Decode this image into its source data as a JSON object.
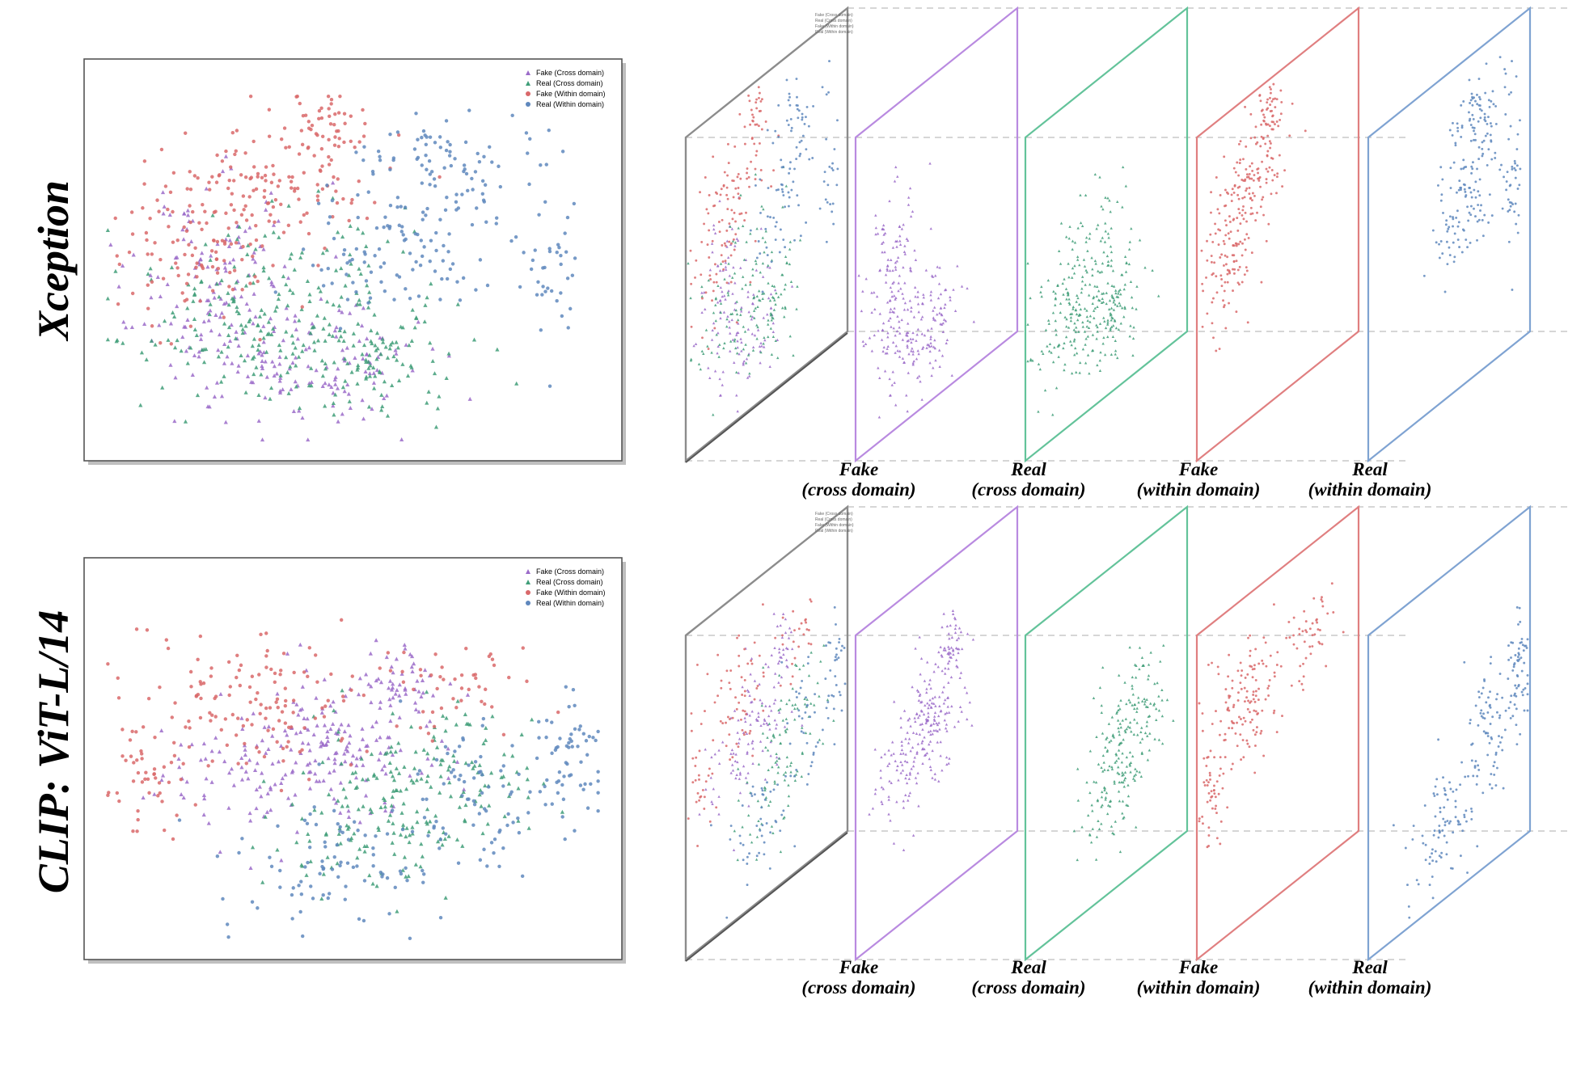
{
  "colors": {
    "fake_cross": "#9b6bc9",
    "real_cross": "#3f9e78",
    "fake_within": "#d9686a",
    "real_within": "#5f88bd",
    "frame_gray": "#8c8c8c",
    "frame_purple": "#b98ae0",
    "frame_green": "#63c39a",
    "frame_red": "#e07f80",
    "frame_blue": "#7fa3d2",
    "dashed": "#c8c8c8"
  },
  "figure": {
    "panels": [
      {
        "row_label": "Xception"
      },
      {
        "row_label": "CLIP: ViT-L/14"
      }
    ],
    "captions": [
      {
        "line1": "Fake",
        "line2": "(cross domain)"
      },
      {
        "line1": "Real",
        "line2": "(cross domain)"
      },
      {
        "line1": "Fake",
        "line2": "(within domain)"
      },
      {
        "line1": "Real",
        "line2": "(within domain)"
      }
    ]
  },
  "chart_data": [
    {
      "type": "scatter",
      "title": "",
      "row_label": "Xception",
      "xlabel": "",
      "ylabel": "",
      "legend_position": "top-right",
      "legend": [
        "Fake (Cross domain)",
        "Real (Cross domain)",
        "Fake (Within domain)",
        "Real (Within domain)"
      ],
      "grid": false,
      "series": [
        {
          "name": "Fake (Cross domain)",
          "marker": "triangle",
          "color": "#9b6bc9",
          "clusters": [
            [
              -0.55,
              -0.1,
              0.3,
              0.45,
              3
            ],
            [
              -0.3,
              -0.55,
              0.3,
              0.3,
              2
            ],
            [
              0.05,
              -0.5,
              0.25,
              0.25,
              1
            ]
          ]
        },
        {
          "name": "Real (Cross domain)",
          "marker": "triangle",
          "color": "#3f9e78",
          "clusters": [
            [
              -0.45,
              -0.3,
              0.35,
              0.4,
              3
            ],
            [
              0.05,
              -0.45,
              0.35,
              0.3,
              3
            ],
            [
              -0.1,
              0.05,
              0.25,
              0.3,
              1
            ]
          ]
        },
        {
          "name": "Fake (Within domain)",
          "marker": "circle",
          "color": "#d9686a",
          "clusters": [
            [
              -0.35,
              0.45,
              0.35,
              0.3,
              3
            ],
            [
              -0.1,
              0.8,
              0.15,
              0.15,
              1
            ],
            [
              -0.65,
              0.1,
              0.25,
              0.35,
              2
            ]
          ]
        },
        {
          "name": "Real (Within domain)",
          "marker": "circle",
          "color": "#5f88bd",
          "clusters": [
            [
              0.35,
              0.55,
              0.3,
              0.25,
              2
            ],
            [
              0.75,
              0.1,
              0.15,
              0.4,
              1
            ],
            [
              0.15,
              0.05,
              0.3,
              0.25,
              2
            ]
          ]
        }
      ]
    },
    {
      "type": "scatter",
      "title": "",
      "row_label": "CLIP: ViT-L/14",
      "xlabel": "",
      "ylabel": "",
      "legend_position": "top-right",
      "legend": [
        "Fake (Cross domain)",
        "Real (Cross domain)",
        "Fake (Within domain)",
        "Real (Within domain)"
      ],
      "grid": false,
      "series": [
        {
          "name": "Fake (Cross domain)",
          "marker": "triangle",
          "color": "#9b6bc9",
          "clusters": [
            [
              -0.1,
              0.1,
              0.3,
              0.3,
              4
            ],
            [
              -0.55,
              -0.05,
              0.25,
              0.25,
              1
            ],
            [
              0.2,
              0.45,
              0.15,
              0.15,
              1
            ]
          ]
        },
        {
          "name": "Real (Cross domain)",
          "marker": "triangle",
          "color": "#3f9e78",
          "clusters": [
            [
              0.35,
              -0.05,
              0.35,
              0.35,
              3
            ],
            [
              0.1,
              -0.35,
              0.35,
              0.3,
              2
            ]
          ]
        },
        {
          "name": "Fake (Within domain)",
          "marker": "circle",
          "color": "#d9686a",
          "clusters": [
            [
              -0.35,
              0.35,
              0.4,
              0.3,
              3
            ],
            [
              0.4,
              0.45,
              0.3,
              0.2,
              1
            ],
            [
              -0.8,
              -0.05,
              0.15,
              0.25,
              1
            ]
          ]
        },
        {
          "name": "Real (Within domain)",
          "marker": "circle",
          "color": "#5f88bd",
          "clusters": [
            [
              0.55,
              -0.2,
              0.3,
              0.35,
              2
            ],
            [
              -0.05,
              -0.55,
              0.4,
              0.3,
              2
            ],
            [
              0.85,
              0.1,
              0.1,
              0.3,
              1
            ]
          ]
        }
      ]
    }
  ]
}
